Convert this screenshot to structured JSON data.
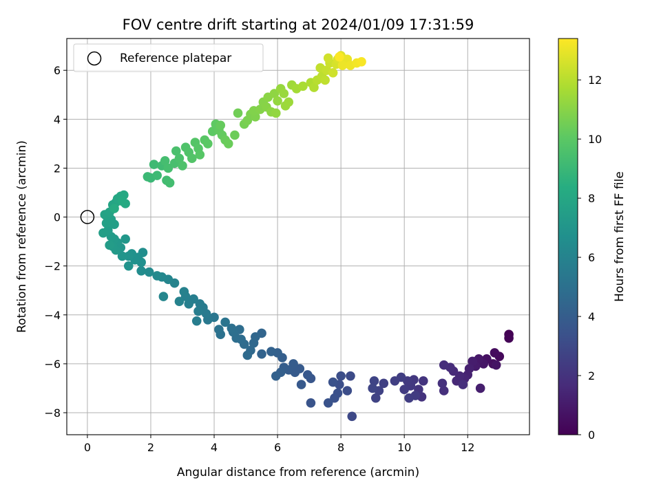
{
  "chart_data": {
    "type": "scatter",
    "title": "FOV centre drift starting at 2024/01/09 17:31:59",
    "xlabel": "Angular distance from reference (arcmin)",
    "ylabel": "Rotation from reference (arcmin)",
    "xlim": [
      -0.65,
      13.95
    ],
    "ylim": [
      -8.9,
      7.3
    ],
    "xticks": [
      0,
      2,
      4,
      6,
      8,
      10,
      12
    ],
    "yticks": [
      -8,
      -6,
      -4,
      -2,
      0,
      2,
      4,
      6
    ],
    "grid": true,
    "legend": {
      "position": "upper-left",
      "entries": [
        "Reference platepar"
      ]
    },
    "reference_point": {
      "x": 0,
      "y": 0
    },
    "colorbar": {
      "label": "Hours from first FF file",
      "colormap": "viridis",
      "range": [
        0,
        13.4
      ],
      "ticks": [
        0,
        2,
        4,
        6,
        8,
        10,
        12
      ]
    },
    "series": [
      {
        "values": [
          {
            "x": 13.3,
            "y": -4.8,
            "c": 0.0
          },
          {
            "x": 13.3,
            "y": -4.95,
            "c": 0.1
          },
          {
            "x": 13.0,
            "y": -5.7,
            "c": 0.3
          },
          {
            "x": 12.85,
            "y": -5.55,
            "c": 0.4
          },
          {
            "x": 12.8,
            "y": -6.0,
            "c": 0.5
          },
          {
            "x": 12.6,
            "y": -5.8,
            "c": 0.6
          },
          {
            "x": 12.9,
            "y": -6.05,
            "c": 0.7
          },
          {
            "x": 12.5,
            "y": -6.0,
            "c": 0.8
          },
          {
            "x": 12.35,
            "y": -5.8,
            "c": 0.9
          },
          {
            "x": 12.25,
            "y": -6.1,
            "c": 1.0
          },
          {
            "x": 12.15,
            "y": -5.9,
            "c": 1.1
          },
          {
            "x": 12.4,
            "y": -7.0,
            "c": 1.15
          },
          {
            "x": 12.05,
            "y": -6.2,
            "c": 1.2
          },
          {
            "x": 12.0,
            "y": -6.45,
            "c": 1.3
          },
          {
            "x": 11.9,
            "y": -6.6,
            "c": 1.4
          },
          {
            "x": 11.75,
            "y": -6.5,
            "c": 1.5
          },
          {
            "x": 11.65,
            "y": -6.7,
            "c": 1.55
          },
          {
            "x": 11.55,
            "y": -6.3,
            "c": 1.6
          },
          {
            "x": 11.45,
            "y": -6.15,
            "c": 1.7
          },
          {
            "x": 11.25,
            "y": -6.05,
            "c": 1.75
          },
          {
            "x": 11.85,
            "y": -6.85,
            "c": 1.8
          },
          {
            "x": 11.25,
            "y": -7.1,
            "c": 1.85
          },
          {
            "x": 11.2,
            "y": -6.8,
            "c": 1.9
          },
          {
            "x": 10.55,
            "y": -7.35,
            "c": 2.0
          },
          {
            "x": 10.6,
            "y": -6.7,
            "c": 2.05
          },
          {
            "x": 10.45,
            "y": -7.05,
            "c": 2.1
          },
          {
            "x": 10.3,
            "y": -6.65,
            "c": 2.2
          },
          {
            "x": 10.2,
            "y": -6.9,
            "c": 2.25
          },
          {
            "x": 10.1,
            "y": -6.7,
            "c": 2.3
          },
          {
            "x": 10.0,
            "y": -7.05,
            "c": 2.35
          },
          {
            "x": 10.35,
            "y": -7.3,
            "c": 2.4
          },
          {
            "x": 10.15,
            "y": -7.4,
            "c": 2.45
          },
          {
            "x": 9.9,
            "y": -6.55,
            "c": 2.5
          },
          {
            "x": 9.7,
            "y": -6.7,
            "c": 2.55
          },
          {
            "x": 9.35,
            "y": -6.8,
            "c": 2.6
          },
          {
            "x": 9.2,
            "y": -7.1,
            "c": 2.65
          },
          {
            "x": 9.1,
            "y": -7.4,
            "c": 2.7
          },
          {
            "x": 9.05,
            "y": -6.7,
            "c": 2.75
          },
          {
            "x": 9.0,
            "y": -7.0,
            "c": 2.8
          },
          {
            "x": 8.35,
            "y": -8.15,
            "c": 3.0
          },
          {
            "x": 8.3,
            "y": -6.5,
            "c": 3.1
          },
          {
            "x": 8.2,
            "y": -7.1,
            "c": 3.15
          },
          {
            "x": 8.0,
            "y": -6.5,
            "c": 3.2
          },
          {
            "x": 7.95,
            "y": -6.85,
            "c": 3.25
          },
          {
            "x": 7.9,
            "y": -7.2,
            "c": 3.3
          },
          {
            "x": 7.8,
            "y": -7.4,
            "c": 3.35
          },
          {
            "x": 7.75,
            "y": -6.75,
            "c": 3.4
          },
          {
            "x": 7.6,
            "y": -7.6,
            "c": 3.45
          },
          {
            "x": 7.05,
            "y": -7.6,
            "c": 3.5
          },
          {
            "x": 7.05,
            "y": -6.6,
            "c": 3.6
          },
          {
            "x": 6.95,
            "y": -6.45,
            "c": 3.7
          },
          {
            "x": 6.75,
            "y": -6.85,
            "c": 3.75
          },
          {
            "x": 6.7,
            "y": -6.2,
            "c": 3.8
          },
          {
            "x": 6.55,
            "y": -6.35,
            "c": 3.85
          },
          {
            "x": 6.5,
            "y": -6.0,
            "c": 3.9
          },
          {
            "x": 6.35,
            "y": -6.25,
            "c": 3.95
          },
          {
            "x": 6.2,
            "y": -6.15,
            "c": 4.0
          },
          {
            "x": 6.15,
            "y": -5.75,
            "c": 4.05
          },
          {
            "x": 6.1,
            "y": -6.35,
            "c": 4.1
          },
          {
            "x": 6.0,
            "y": -5.55,
            "c": 4.15
          },
          {
            "x": 5.95,
            "y": -6.5,
            "c": 4.2
          },
          {
            "x": 5.8,
            "y": -5.5,
            "c": 4.25
          },
          {
            "x": 5.5,
            "y": -5.6,
            "c": 4.3
          },
          {
            "x": 5.5,
            "y": -4.75,
            "c": 4.4
          },
          {
            "x": 5.3,
            "y": -4.9,
            "c": 4.5
          },
          {
            "x": 5.25,
            "y": -5.15,
            "c": 4.55
          },
          {
            "x": 5.15,
            "y": -5.45,
            "c": 4.6
          },
          {
            "x": 5.05,
            "y": -5.65,
            "c": 4.65
          },
          {
            "x": 4.95,
            "y": -5.2,
            "c": 4.7
          },
          {
            "x": 4.85,
            "y": -5.0,
            "c": 4.75
          },
          {
            "x": 4.8,
            "y": -4.6,
            "c": 4.8
          },
          {
            "x": 4.7,
            "y": -4.95,
            "c": 4.85
          },
          {
            "x": 4.6,
            "y": -4.7,
            "c": 4.9
          },
          {
            "x": 4.55,
            "y": -4.55,
            "c": 4.95
          },
          {
            "x": 4.2,
            "y": -4.8,
            "c": 5.0
          },
          {
            "x": 4.15,
            "y": -4.6,
            "c": 5.1
          },
          {
            "x": 4.35,
            "y": -4.3,
            "c": 5.2
          },
          {
            "x": 4.0,
            "y": -4.1,
            "c": 5.3
          },
          {
            "x": 3.8,
            "y": -4.2,
            "c": 5.4
          },
          {
            "x": 3.75,
            "y": -3.95,
            "c": 5.5
          },
          {
            "x": 3.65,
            "y": -3.7,
            "c": 5.55
          },
          {
            "x": 3.55,
            "y": -3.55,
            "c": 5.6
          },
          {
            "x": 3.5,
            "y": -3.85,
            "c": 5.65
          },
          {
            "x": 3.45,
            "y": -4.25,
            "c": 5.7
          },
          {
            "x": 3.35,
            "y": -3.35,
            "c": 5.75
          },
          {
            "x": 3.2,
            "y": -3.55,
            "c": 5.8
          },
          {
            "x": 3.1,
            "y": -3.25,
            "c": 5.85
          },
          {
            "x": 3.05,
            "y": -3.05,
            "c": 5.9
          },
          {
            "x": 2.9,
            "y": -3.45,
            "c": 5.95
          },
          {
            "x": 2.75,
            "y": -2.7,
            "c": 6.0
          },
          {
            "x": 2.55,
            "y": -2.55,
            "c": 6.1
          },
          {
            "x": 2.4,
            "y": -3.25,
            "c": 6.15
          },
          {
            "x": 2.35,
            "y": -2.45,
            "c": 6.2
          },
          {
            "x": 2.2,
            "y": -2.4,
            "c": 6.3
          },
          {
            "x": 1.95,
            "y": -2.25,
            "c": 6.4
          },
          {
            "x": 1.7,
            "y": -2.2,
            "c": 6.5
          },
          {
            "x": 1.75,
            "y": -1.45,
            "c": 6.6
          },
          {
            "x": 1.7,
            "y": -1.85,
            "c": 6.65
          },
          {
            "x": 1.6,
            "y": -1.65,
            "c": 6.7
          },
          {
            "x": 1.5,
            "y": -1.75,
            "c": 6.75
          },
          {
            "x": 1.4,
            "y": -1.5,
            "c": 6.8
          },
          {
            "x": 1.3,
            "y": -1.6,
            "c": 6.85
          },
          {
            "x": 1.3,
            "y": -2.0,
            "c": 6.9
          },
          {
            "x": 1.1,
            "y": -1.6,
            "c": 7.0
          },
          {
            "x": 1.05,
            "y": -1.25,
            "c": 7.05
          },
          {
            "x": 1.2,
            "y": -0.9,
            "c": 7.1
          },
          {
            "x": 0.95,
            "y": -1.05,
            "c": 7.15
          },
          {
            "x": 0.9,
            "y": -1.35,
            "c": 7.2
          },
          {
            "x": 0.85,
            "y": -0.9,
            "c": 7.25
          },
          {
            "x": 0.8,
            "y": -1.2,
            "c": 7.3
          },
          {
            "x": 0.75,
            "y": -0.8,
            "c": 7.35
          },
          {
            "x": 0.7,
            "y": -1.15,
            "c": 7.4
          },
          {
            "x": 0.65,
            "y": -0.55,
            "c": 7.45
          },
          {
            "x": 0.5,
            "y": -0.65,
            "c": 7.5
          },
          {
            "x": 0.85,
            "y": -0.3,
            "c": 7.55
          },
          {
            "x": 0.75,
            "y": -0.1,
            "c": 7.6
          },
          {
            "x": 0.6,
            "y": -0.25,
            "c": 7.65
          },
          {
            "x": 0.6,
            "y": 0.05,
            "c": 7.7
          },
          {
            "x": 0.55,
            "y": 0.1,
            "c": 7.75
          },
          {
            "x": 0.7,
            "y": 0.2,
            "c": 7.8
          },
          {
            "x": 0.8,
            "y": 0.5,
            "c": 7.85
          },
          {
            "x": 0.9,
            "y": 0.6,
            "c": 7.9
          },
          {
            "x": 0.95,
            "y": 0.75,
            "c": 8.0
          },
          {
            "x": 1.05,
            "y": 0.85,
            "c": 8.05
          },
          {
            "x": 1.15,
            "y": 0.9,
            "c": 8.1
          },
          {
            "x": 1.2,
            "y": 0.55,
            "c": 8.15
          },
          {
            "x": 1.1,
            "y": 0.65,
            "c": 8.2
          },
          {
            "x": 0.85,
            "y": 0.35,
            "c": 8.25
          },
          {
            "x": 2.0,
            "y": 1.6,
            "c": 9.0
          },
          {
            "x": 1.9,
            "y": 1.65,
            "c": 9.05
          },
          {
            "x": 2.2,
            "y": 1.7,
            "c": 9.1
          },
          {
            "x": 2.1,
            "y": 2.15,
            "c": 9.15
          },
          {
            "x": 2.35,
            "y": 2.1,
            "c": 9.2
          },
          {
            "x": 2.5,
            "y": 1.5,
            "c": 9.25
          },
          {
            "x": 2.6,
            "y": 1.4,
            "c": 9.3
          },
          {
            "x": 2.45,
            "y": 2.3,
            "c": 9.35
          },
          {
            "x": 2.55,
            "y": 2.0,
            "c": 9.4
          },
          {
            "x": 2.75,
            "y": 2.2,
            "c": 9.45
          },
          {
            "x": 2.8,
            "y": 2.7,
            "c": 9.5
          },
          {
            "x": 2.9,
            "y": 2.4,
            "c": 9.55
          },
          {
            "x": 3.0,
            "y": 2.1,
            "c": 9.6
          },
          {
            "x": 3.1,
            "y": 2.85,
            "c": 9.65
          },
          {
            "x": 3.2,
            "y": 2.65,
            "c": 9.7
          },
          {
            "x": 3.3,
            "y": 2.4,
            "c": 9.75
          },
          {
            "x": 3.4,
            "y": 3.05,
            "c": 9.8
          },
          {
            "x": 3.5,
            "y": 2.8,
            "c": 9.85
          },
          {
            "x": 3.55,
            "y": 2.55,
            "c": 9.9
          },
          {
            "x": 3.7,
            "y": 3.15,
            "c": 9.95
          },
          {
            "x": 3.8,
            "y": 3.0,
            "c": 10.0
          },
          {
            "x": 3.95,
            "y": 3.5,
            "c": 10.05
          },
          {
            "x": 4.05,
            "y": 3.8,
            "c": 10.1
          },
          {
            "x": 4.15,
            "y": 3.55,
            "c": 10.15
          },
          {
            "x": 4.25,
            "y": 3.35,
            "c": 10.2
          },
          {
            "x": 4.2,
            "y": 3.75,
            "c": 10.25
          },
          {
            "x": 4.35,
            "y": 3.15,
            "c": 10.3
          },
          {
            "x": 4.45,
            "y": 3.0,
            "c": 10.35
          },
          {
            "x": 4.65,
            "y": 3.35,
            "c": 10.4
          },
          {
            "x": 4.75,
            "y": 4.25,
            "c": 10.5
          },
          {
            "x": 4.95,
            "y": 3.8,
            "c": 10.6
          },
          {
            "x": 5.05,
            "y": 3.95,
            "c": 10.7
          },
          {
            "x": 5.15,
            "y": 4.2,
            "c": 10.75
          },
          {
            "x": 5.3,
            "y": 4.1,
            "c": 10.8
          },
          {
            "x": 5.25,
            "y": 4.35,
            "c": 10.85
          },
          {
            "x": 5.45,
            "y": 4.4,
            "c": 10.9
          },
          {
            "x": 5.55,
            "y": 4.7,
            "c": 10.95
          },
          {
            "x": 5.65,
            "y": 4.5,
            "c": 11.0
          },
          {
            "x": 5.7,
            "y": 4.9,
            "c": 11.05
          },
          {
            "x": 5.8,
            "y": 4.3,
            "c": 11.1
          },
          {
            "x": 5.9,
            "y": 5.05,
            "c": 11.15
          },
          {
            "x": 5.95,
            "y": 4.25,
            "c": 11.2
          },
          {
            "x": 6.0,
            "y": 4.75,
            "c": 11.25
          },
          {
            "x": 6.1,
            "y": 5.25,
            "c": 11.3
          },
          {
            "x": 6.2,
            "y": 5.05,
            "c": 11.35
          },
          {
            "x": 6.25,
            "y": 4.55,
            "c": 11.4
          },
          {
            "x": 6.35,
            "y": 4.7,
            "c": 11.45
          },
          {
            "x": 6.45,
            "y": 5.4,
            "c": 11.5
          },
          {
            "x": 6.6,
            "y": 5.25,
            "c": 11.6
          },
          {
            "x": 6.8,
            "y": 5.35,
            "c": 11.7
          },
          {
            "x": 7.05,
            "y": 5.5,
            "c": 11.8
          },
          {
            "x": 7.15,
            "y": 5.3,
            "c": 11.9
          },
          {
            "x": 7.25,
            "y": 5.6,
            "c": 12.0
          },
          {
            "x": 7.4,
            "y": 5.75,
            "c": 12.1
          },
          {
            "x": 7.5,
            "y": 5.6,
            "c": 12.15
          },
          {
            "x": 7.35,
            "y": 6.1,
            "c": 12.2
          },
          {
            "x": 7.55,
            "y": 6.0,
            "c": 12.3
          },
          {
            "x": 7.65,
            "y": 6.3,
            "c": 12.4
          },
          {
            "x": 7.75,
            "y": 5.9,
            "c": 12.45
          },
          {
            "x": 7.6,
            "y": 6.5,
            "c": 12.5
          },
          {
            "x": 7.85,
            "y": 6.25,
            "c": 12.6
          },
          {
            "x": 7.9,
            "y": 6.45,
            "c": 12.7
          },
          {
            "x": 8.0,
            "y": 6.6,
            "c": 12.8
          },
          {
            "x": 8.1,
            "y": 6.35,
            "c": 12.9
          },
          {
            "x": 8.2,
            "y": 6.45,
            "c": 13.0
          },
          {
            "x": 8.05,
            "y": 6.2,
            "c": 13.05
          },
          {
            "x": 8.3,
            "y": 6.2,
            "c": 13.1
          },
          {
            "x": 8.5,
            "y": 6.3,
            "c": 13.2
          },
          {
            "x": 8.65,
            "y": 6.35,
            "c": 13.3
          },
          {
            "x": 7.95,
            "y": 6.55,
            "c": 13.35
          }
        ]
      }
    ]
  }
}
